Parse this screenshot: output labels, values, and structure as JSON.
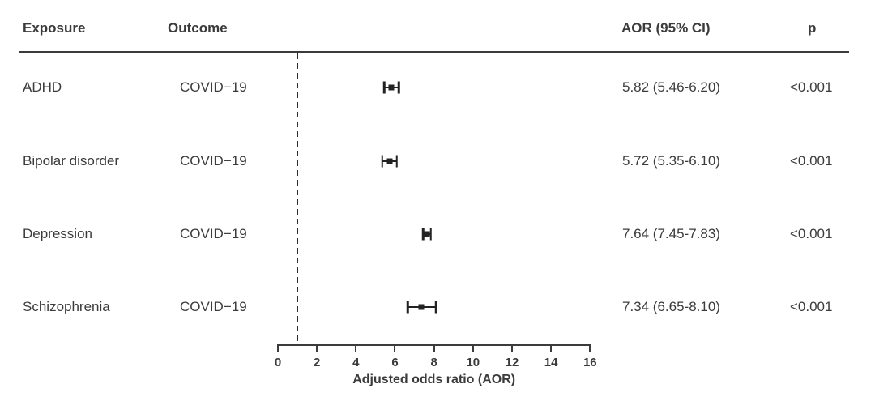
{
  "header": {
    "exposure": "Exposure",
    "outcome": "Outcome",
    "aor_ci": "AOR (95% CI)",
    "p": "p"
  },
  "chart_data": {
    "type": "scatter",
    "variant": "forest-plot",
    "xlabel": "Adjusted odds ratio (AOR)",
    "xlim": [
      0,
      16
    ],
    "xticks": [
      0,
      2,
      4,
      6,
      8,
      10,
      12,
      14,
      16
    ],
    "reference_line": 1,
    "grid": false,
    "legend": null,
    "rows": [
      {
        "exposure": "ADHD",
        "outcome": "COVID−19",
        "aor": 5.82,
        "ci_low": 5.46,
        "ci_high": 6.2,
        "aor_ci_label": "5.82 (5.46-6.20)",
        "p_label": "<0.001"
      },
      {
        "exposure": "Bipolar disorder",
        "outcome": "COVID−19",
        "aor": 5.72,
        "ci_low": 5.35,
        "ci_high": 6.1,
        "aor_ci_label": "5.72 (5.35-6.10)",
        "p_label": "<0.001"
      },
      {
        "exposure": "Depression",
        "outcome": "COVID−19",
        "aor": 7.64,
        "ci_low": 7.45,
        "ci_high": 7.83,
        "aor_ci_label": "7.64 (7.45-7.83)",
        "p_label": "<0.001"
      },
      {
        "exposure": "Schizophrenia",
        "outcome": "COVID−19",
        "aor": 7.34,
        "ci_low": 6.65,
        "ci_high": 8.1,
        "aor_ci_label": "7.34 (6.65-8.10)",
        "p_label": "<0.001"
      }
    ],
    "colors": {
      "text": "#3b3b3b",
      "axis": "#3b3b3b",
      "marker": "#222222"
    }
  }
}
